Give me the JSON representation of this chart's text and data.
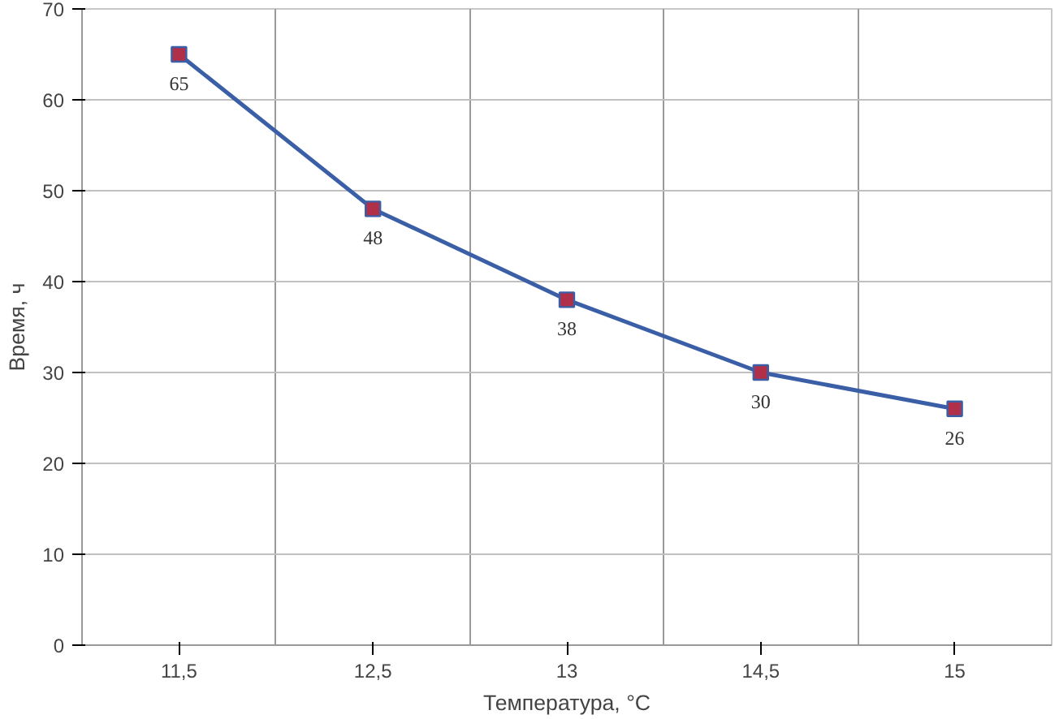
{
  "chart_data": {
    "type": "line",
    "xlabel": "Температура, °C",
    "ylabel": "Время, ч",
    "categories": [
      "11,5",
      "12,5",
      "13",
      "14,5",
      "15"
    ],
    "series": [
      {
        "color": "#3b5fa6",
        "values": [
          65,
          48,
          38,
          30,
          26
        ]
      }
    ],
    "ylim": [
      0,
      70
    ],
    "yticks": [
      0,
      10,
      20,
      30,
      40,
      50,
      60,
      70
    ],
    "grid": true,
    "marker": "square",
    "line_style": "solid",
    "data_labels": true
  }
}
